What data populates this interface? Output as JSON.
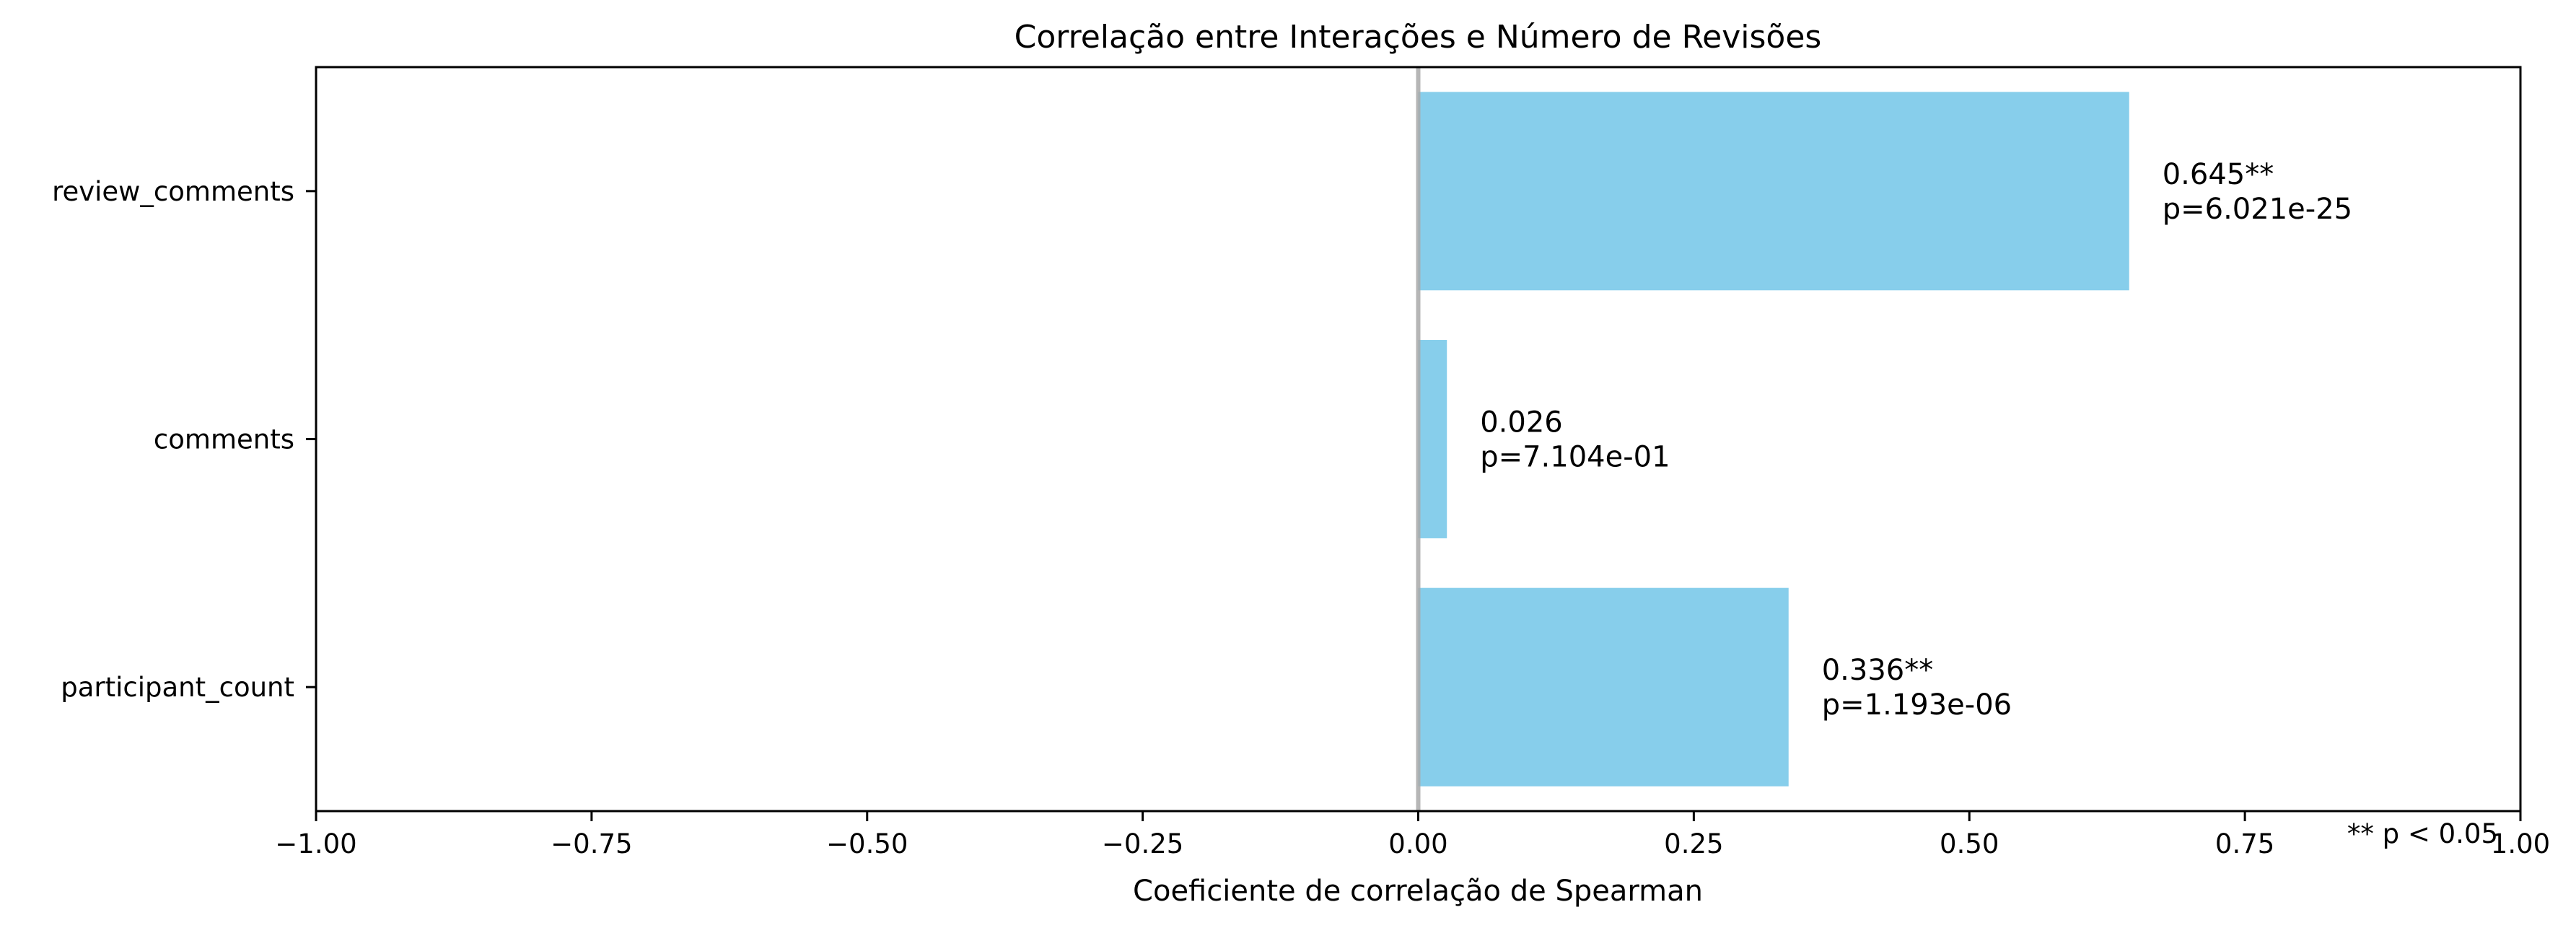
{
  "chart_data": {
    "type": "bar",
    "orientation": "horizontal",
    "title": "Correlação entre Interações e Número de Revisões",
    "xlabel": "Coeficiente de correlação de Spearman",
    "ylabel": "",
    "xlim": [
      -1.0,
      1.0
    ],
    "x_ticks": [
      -1.0,
      -0.75,
      -0.5,
      -0.25,
      0.0,
      0.25,
      0.5,
      0.75,
      1.0
    ],
    "x_tick_labels": [
      "−1.00",
      "−0.75",
      "−0.50",
      "−0.25",
      "0.00",
      "0.25",
      "0.50",
      "0.75",
      "1.00"
    ],
    "categories": [
      "review_comments",
      "comments",
      "participant_count"
    ],
    "values": [
      0.645,
      0.026,
      0.336
    ],
    "annotations": [
      {
        "value_text": "0.645**",
        "p_text": "p=6.021e-25"
      },
      {
        "value_text": "0.026",
        "p_text": "p=7.104e-01"
      },
      {
        "value_text": "0.336**",
        "p_text": "p=1.193e-06"
      }
    ],
    "footnote": "** p < 0.05",
    "bar_color": "#87CEEB",
    "zero_line_color": "#A9A9A9",
    "grid": false,
    "legend": "none"
  }
}
